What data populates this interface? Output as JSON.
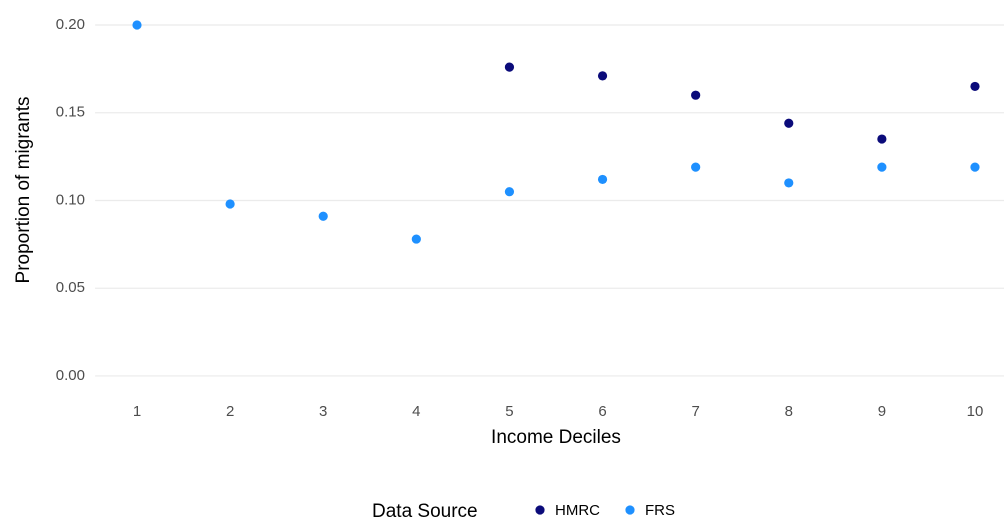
{
  "chart_data": {
    "type": "scatter",
    "x_label": "Income Deciles",
    "y_label": "Proportion of migrants",
    "x": [
      1,
      2,
      3,
      4,
      5,
      6,
      7,
      8,
      9,
      10
    ],
    "series": [
      {
        "name": "HMRC",
        "color": "#0b0b7a",
        "values": [
          null,
          null,
          null,
          null,
          0.176,
          0.171,
          0.16,
          0.144,
          0.135,
          0.165
        ]
      },
      {
        "name": "FRS",
        "color": "#1e90ff",
        "values": [
          0.2,
          0.098,
          0.091,
          0.078,
          0.105,
          0.112,
          0.119,
          0.11,
          0.119,
          0.119
        ]
      }
    ],
    "xlim": [
      0.55,
      10.45
    ],
    "xticks": [
      1,
      2,
      3,
      4,
      5,
      6,
      7,
      8,
      9,
      10
    ],
    "ylim": [
      -0.01,
      0.21
    ],
    "yticks": [
      {
        "value": 0,
        "label": "0.00"
      },
      {
        "value": 0.05,
        "label": "0.05"
      },
      {
        "value": 0.1,
        "label": "0.10"
      },
      {
        "value": 0.15,
        "label": "0.15"
      },
      {
        "value": 0.2,
        "label": "0.20"
      }
    ],
    "grid": true,
    "legend_title": "Data Source",
    "legend_position": "bottom"
  }
}
